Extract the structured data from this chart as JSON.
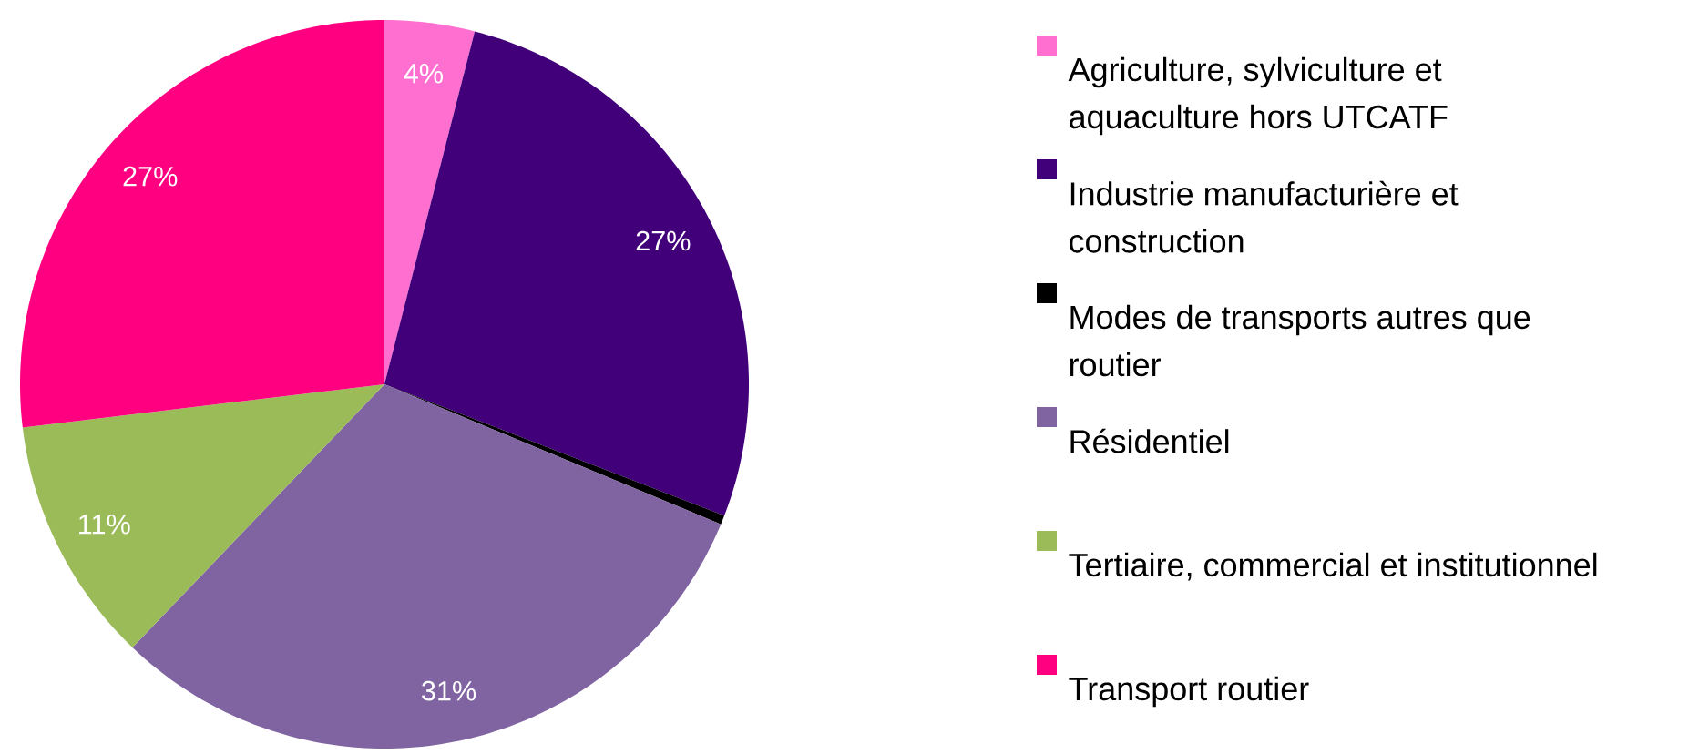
{
  "chart_data": {
    "type": "pie",
    "categories": [
      "Agriculture, sylviculture et aquaculture hors UTCATF",
      "Industrie manufacturière et construction",
      "Modes de transports autres que routier",
      "Résidentiel",
      "Tertiaire, commercial et institutionnel",
      "Transport routier"
    ],
    "values": [
      4,
      27,
      0.4,
      31,
      11,
      27
    ],
    "colors": [
      "#ff6fcf",
      "#41007a",
      "#000000",
      "#8064a2",
      "#9bbb59",
      "#ff0080"
    ],
    "value_labels": [
      "4%",
      "27%",
      null,
      "31%",
      "11%",
      "27%"
    ],
    "legend": "right"
  }
}
